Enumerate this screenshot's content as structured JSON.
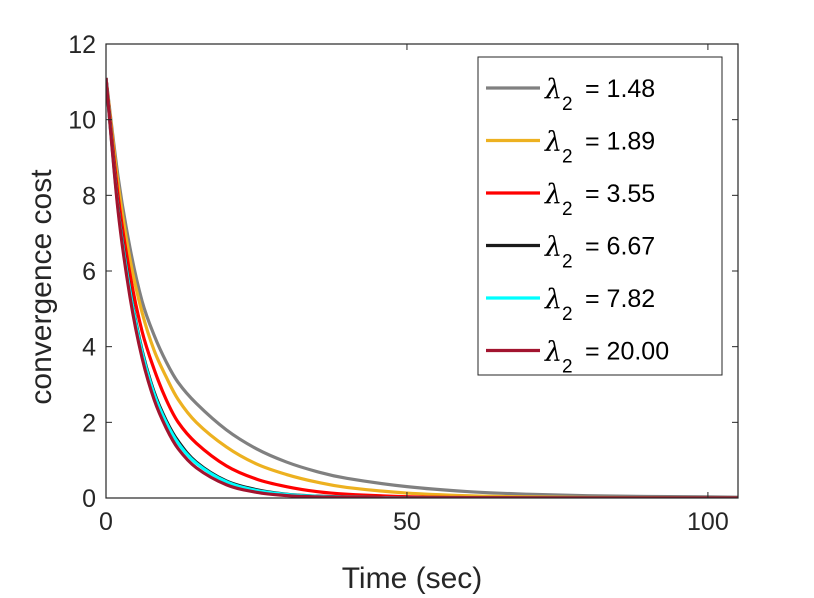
{
  "chart_data": {
    "type": "line",
    "title": "",
    "xlabel": "Time (sec)",
    "ylabel": "convergence cost",
    "xlim": [
      0,
      105
    ],
    "ylim": [
      0,
      12
    ],
    "xticks": [
      0,
      50,
      100
    ],
    "yticks": [
      0,
      2,
      4,
      6,
      8,
      10,
      12
    ],
    "grid": false,
    "legend_position": "top-right",
    "legend_symbol": "λ",
    "legend_subscript": "2",
    "x": [
      0,
      2,
      4,
      6,
      8,
      10,
      12,
      15,
      20,
      25,
      30,
      35,
      40,
      50,
      60,
      70,
      80,
      90,
      100,
      105
    ],
    "series": [
      {
        "name": "λ2 = 1.48",
        "label_value": "= 1.48",
        "color": "#808080",
        "values": [
          11.1,
          8.5,
          6.6,
          5.2,
          4.3,
          3.6,
          3.05,
          2.5,
          1.8,
          1.3,
          0.95,
          0.7,
          0.52,
          0.3,
          0.17,
          0.1,
          0.06,
          0.04,
          0.03,
          0.02
        ]
      },
      {
        "name": "λ2 = 1.89",
        "label_value": "= 1.89",
        "color": "#EDB120",
        "values": [
          11.1,
          8.3,
          6.3,
          4.9,
          3.9,
          3.2,
          2.6,
          2.0,
          1.35,
          0.9,
          0.62,
          0.42,
          0.28,
          0.13,
          0.06,
          0.03,
          0.015,
          0.01,
          0.005,
          0.004
        ]
      },
      {
        "name": "λ2 = 3.55",
        "label_value": "= 3.55",
        "color": "#FF0000",
        "values": [
          11.1,
          8.0,
          5.9,
          4.4,
          3.4,
          2.6,
          2.0,
          1.45,
          0.85,
          0.5,
          0.3,
          0.17,
          0.1,
          0.035,
          0.012,
          0.005,
          0.002,
          0.001,
          0.0,
          0.0
        ]
      },
      {
        "name": "λ2 = 6.67",
        "label_value": "= 6.67",
        "color": "#1A1A1A",
        "values": [
          11.1,
          7.7,
          5.5,
          3.9,
          2.8,
          2.05,
          1.5,
          0.95,
          0.45,
          0.22,
          0.1,
          0.05,
          0.025,
          0.006,
          0.001,
          0.0,
          0.0,
          0.0,
          0.0,
          0.0
        ]
      },
      {
        "name": "λ2 = 7.82",
        "label_value": "= 7.82",
        "color": "#00FFFF",
        "values": [
          11.1,
          7.65,
          5.45,
          3.85,
          2.75,
          2.0,
          1.45,
          0.92,
          0.43,
          0.2,
          0.095,
          0.045,
          0.022,
          0.005,
          0.001,
          0.0,
          0.0,
          0.0,
          0.0,
          0.0
        ]
      },
      {
        "name": "λ2 = 20.00",
        "label_value": "= 20.00",
        "color": "#A2142F",
        "values": [
          11.1,
          7.6,
          5.3,
          3.7,
          2.6,
          1.85,
          1.3,
          0.8,
          0.35,
          0.15,
          0.065,
          0.03,
          0.013,
          0.003,
          0.0,
          0.0,
          0.0,
          0.0,
          0.0,
          0.0
        ]
      }
    ]
  }
}
